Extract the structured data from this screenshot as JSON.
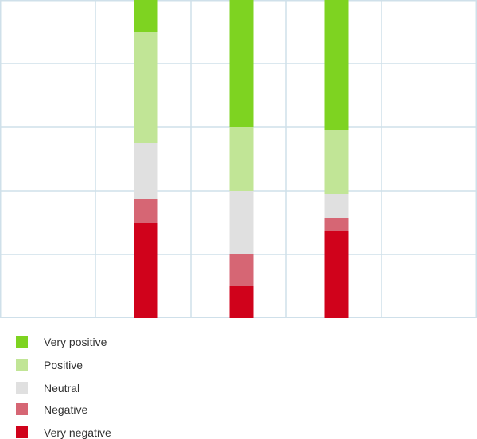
{
  "chart_data": {
    "type": "bar",
    "stacked": true,
    "categories": [
      "",
      "",
      "",
      "",
      ""
    ],
    "ylim": [
      0,
      100
    ],
    "grid": true,
    "legend_placement": "bottom-left",
    "series": [
      {
        "name": "Very negative",
        "color": "#d0021b",
        "values": [
          0,
          30,
          10,
          27.5,
          0
        ]
      },
      {
        "name": "Negative",
        "color": "#d66674",
        "values": [
          0,
          7.5,
          10,
          4,
          0
        ]
      },
      {
        "name": "Neutral",
        "color": "#e0e0e0",
        "values": [
          0,
          17.5,
          20,
          7.5,
          0
        ]
      },
      {
        "name": "Positive",
        "color": "#c1e596",
        "values": [
          0,
          35,
          20,
          20,
          0
        ]
      },
      {
        "name": "Very positive",
        "color": "#7ed321",
        "values": [
          0,
          10,
          40,
          41,
          0
        ]
      }
    ]
  },
  "legend": {
    "items": [
      {
        "label": "Very positive",
        "color": "#7ed321"
      },
      {
        "label": "Positive",
        "color": "#c1e596"
      },
      {
        "label": "Neutral",
        "color": "#e0e0e0"
      },
      {
        "label": "Negative",
        "color": "#d66674"
      },
      {
        "label": "Very negative",
        "color": "#d0021b"
      }
    ]
  },
  "colors": {
    "grid": "#cfe0ea"
  }
}
